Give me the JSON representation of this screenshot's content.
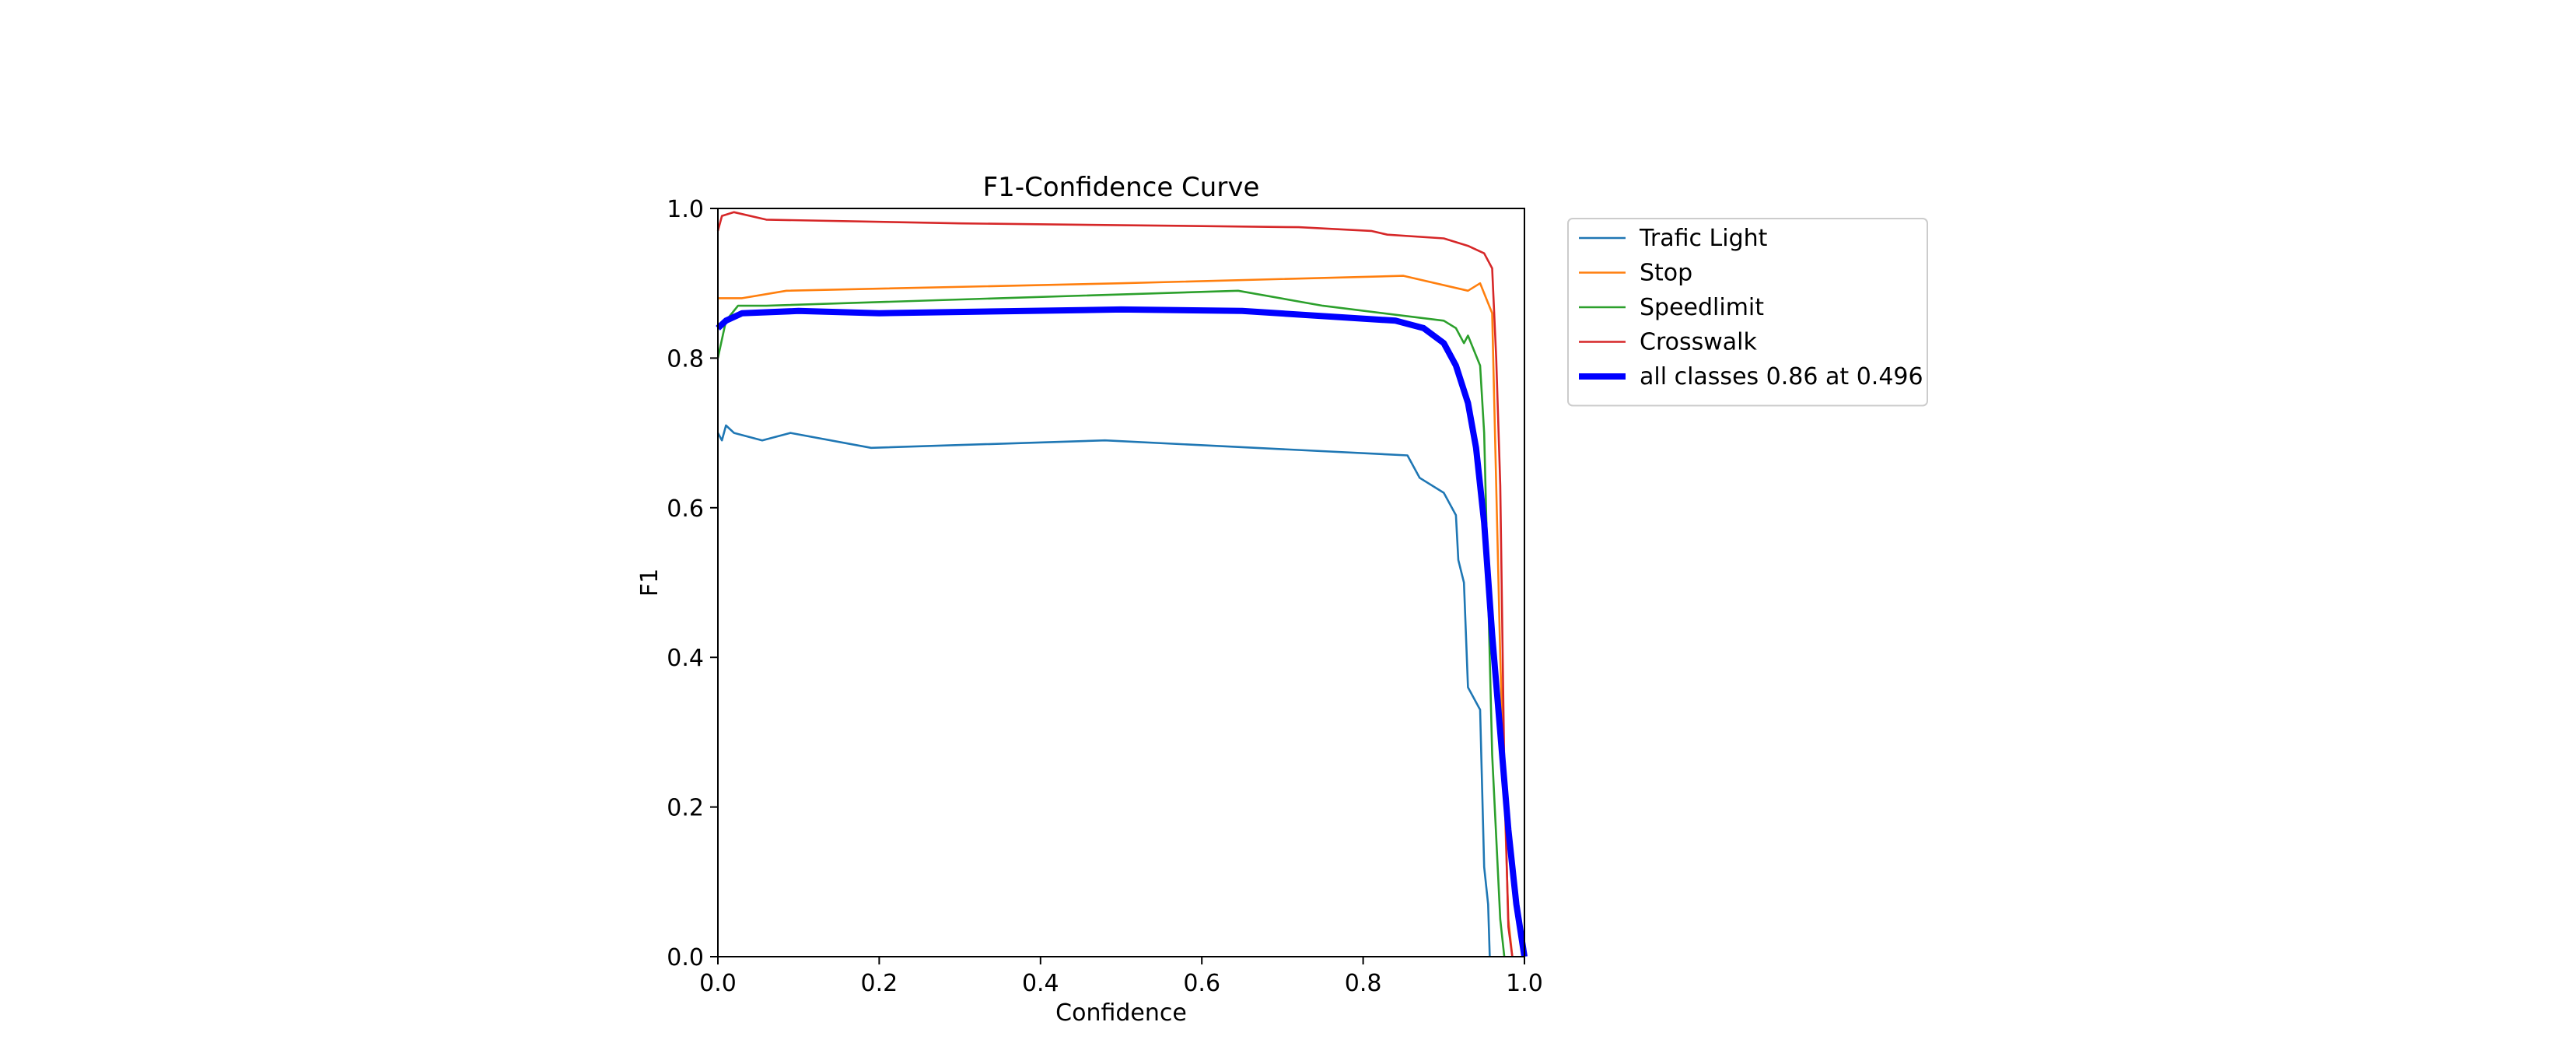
{
  "chart_data": {
    "type": "line",
    "title": "F1-Confidence Curve",
    "xlabel": "Confidence",
    "ylabel": "F1",
    "xlim": [
      0,
      1
    ],
    "ylim": [
      0,
      1
    ],
    "xticks": [
      "0.0",
      "0.2",
      "0.4",
      "0.6",
      "0.8",
      "1.0"
    ],
    "yticks": [
      "0.0",
      "0.2",
      "0.4",
      "0.6",
      "0.8",
      "1.0"
    ],
    "grid": false,
    "legend_position": "outside-top-right",
    "series": [
      {
        "name": "Trafic Light",
        "color": "#1f77b4",
        "bold": false,
        "x": [
          0.0,
          0.005,
          0.01,
          0.02,
          0.055,
          0.09,
          0.19,
          0.48,
          0.855,
          0.87,
          0.9,
          0.915,
          0.918,
          0.925,
          0.93,
          0.945,
          0.95,
          0.955,
          0.957
        ],
        "y": [
          0.7,
          0.69,
          0.71,
          0.7,
          0.69,
          0.7,
          0.68,
          0.69,
          0.67,
          0.64,
          0.62,
          0.59,
          0.53,
          0.5,
          0.36,
          0.33,
          0.12,
          0.07,
          0.0
        ]
      },
      {
        "name": "Stop",
        "color": "#ff7f0e",
        "bold": false,
        "x": [
          0.0,
          0.03,
          0.085,
          0.5,
          0.85,
          0.93,
          0.945,
          0.96,
          0.97,
          0.98,
          0.985
        ],
        "y": [
          0.88,
          0.88,
          0.89,
          0.9,
          0.91,
          0.89,
          0.9,
          0.86,
          0.4,
          0.05,
          0.0
        ]
      },
      {
        "name": "Speedlimit",
        "color": "#2ca02c",
        "bold": false,
        "x": [
          0.0,
          0.01,
          0.025,
          0.06,
          0.35,
          0.645,
          0.75,
          0.9,
          0.915,
          0.925,
          0.93,
          0.945,
          0.95,
          0.96,
          0.97,
          0.975
        ],
        "y": [
          0.8,
          0.85,
          0.87,
          0.87,
          0.88,
          0.89,
          0.87,
          0.85,
          0.84,
          0.82,
          0.83,
          0.79,
          0.7,
          0.27,
          0.05,
          0.0
        ]
      },
      {
        "name": "Crosswalk",
        "color": "#d62728",
        "bold": false,
        "x": [
          0.0,
          0.005,
          0.02,
          0.06,
          0.3,
          0.72,
          0.81,
          0.83,
          0.9,
          0.93,
          0.95,
          0.96,
          0.965,
          0.97,
          0.975,
          0.98,
          0.985
        ],
        "y": [
          0.97,
          0.99,
          0.995,
          0.985,
          0.98,
          0.975,
          0.97,
          0.965,
          0.96,
          0.95,
          0.94,
          0.92,
          0.8,
          0.63,
          0.25,
          0.04,
          0.0
        ]
      },
      {
        "name": "all classes 0.86 at 0.496",
        "color": "#0000ff",
        "bold": true,
        "x": [
          0.0,
          0.01,
          0.03,
          0.1,
          0.2,
          0.5,
          0.65,
          0.84,
          0.875,
          0.9,
          0.915,
          0.93,
          0.94,
          0.95,
          0.96,
          0.97,
          0.98,
          0.99,
          1.0
        ],
        "y": [
          0.84,
          0.85,
          0.86,
          0.863,
          0.86,
          0.865,
          0.863,
          0.85,
          0.84,
          0.82,
          0.79,
          0.74,
          0.68,
          0.58,
          0.43,
          0.3,
          0.17,
          0.07,
          0.0
        ]
      }
    ]
  }
}
